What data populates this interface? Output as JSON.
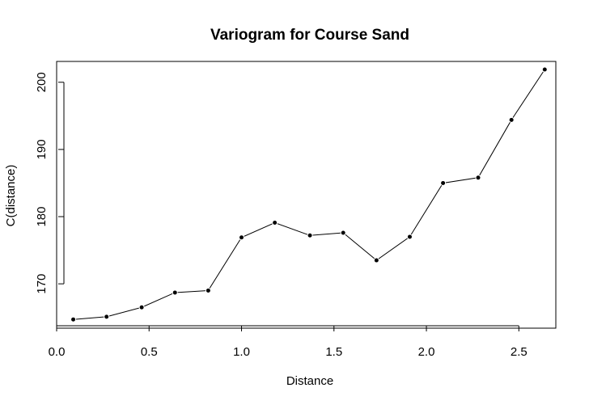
{
  "chart_data": {
    "type": "line",
    "title": "Variogram for Course Sand",
    "xlabel": "Distance",
    "ylabel": "C(distance)",
    "xlim": [
      0.0,
      2.7
    ],
    "ylim": [
      163.4,
      203.1
    ],
    "x_ticks": [
      0.0,
      0.5,
      1.0,
      1.5,
      2.0,
      2.5
    ],
    "x_tick_labels": [
      "0.0",
      "0.5",
      "1.0",
      "1.5",
      "2.0",
      "2.5"
    ],
    "y_ticks": [
      170,
      180,
      190,
      200
    ],
    "y_tick_labels": [
      "170",
      "180",
      "190",
      "200"
    ],
    "grid": false,
    "series": [
      {
        "x": [
          0.09,
          0.27,
          0.46,
          0.64,
          0.82,
          1.0,
          1.18,
          1.37,
          1.55,
          1.73,
          1.91,
          2.09,
          2.28,
          2.46,
          2.64
        ],
        "y": [
          164.7,
          165.1,
          166.5,
          168.7,
          169.0,
          176.9,
          179.1,
          177.2,
          177.6,
          173.5,
          177.0,
          185.0,
          185.8,
          194.4,
          201.9
        ]
      }
    ],
    "style": {
      "line_color": "#000000",
      "point_color": "#000000",
      "background": "#ffffff"
    }
  }
}
